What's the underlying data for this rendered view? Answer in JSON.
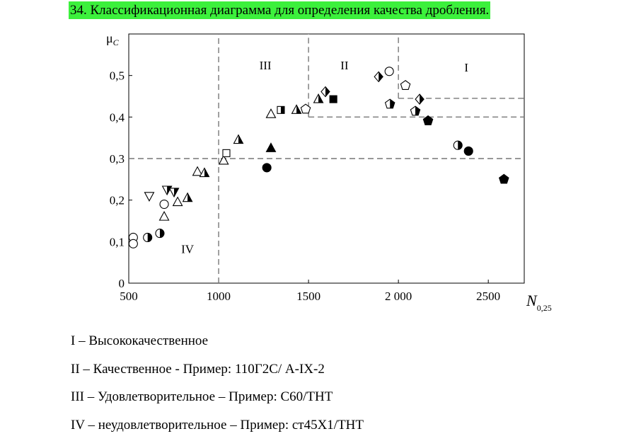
{
  "title": "34. Классификационная диаграмма для определения качества дробления.",
  "chart_data": {
    "type": "scatter",
    "xlabel": {
      "text": "N",
      "sub": "0,25"
    },
    "ylabel": {
      "text": "μ",
      "sub": "C"
    },
    "xlim": [
      500,
      2700
    ],
    "ylim": [
      0,
      0.6
    ],
    "xticks": [
      500,
      1000,
      1500,
      {
        "value": 2000,
        "label": "2 000"
      },
      2500
    ],
    "yticks": [
      0,
      {
        "value": 0.1,
        "label": "0,1"
      },
      {
        "value": 0.2,
        "label": "0,2"
      },
      {
        "value": 0.3,
        "label": "0,3"
      },
      {
        "value": 0.4,
        "label": "0,4"
      },
      {
        "value": 0.5,
        "label": "0,5"
      }
    ],
    "color": "#000000",
    "x": [
      525,
      525,
      605,
      673,
      697,
      697,
      614,
      713,
      752,
      772,
      827,
      882,
      921,
      1028,
      1043,
      1110,
      1268,
      1291,
      1291,
      1346,
      1433,
      1484,
      1555,
      1594,
      1638,
      1890,
      1949,
      1953,
      2039,
      2118,
      2094,
      2165,
      2331,
      2390,
      2587
    ],
    "values": [
      0.11,
      0.095,
      0.11,
      0.12,
      0.16,
      0.19,
      0.21,
      0.225,
      0.22,
      0.195,
      0.205,
      0.268,
      0.265,
      0.295,
      0.313,
      0.345,
      0.278,
      0.325,
      0.407,
      0.417,
      0.417,
      0.419,
      0.443,
      0.461,
      0.443,
      0.497,
      0.51,
      0.431,
      0.476,
      0.443,
      0.414,
      0.391,
      0.332,
      0.318,
      0.25
    ],
    "markers": [
      "circle-open",
      "circle-open",
      "circle-half",
      "circle-half",
      "triangle-open",
      "circle-open",
      "triangle-down-open",
      "triangle-down-half",
      "triangle-down-half",
      "triangle-open",
      "triangle-half",
      "triangle-open",
      "triangle-half",
      "triangle-open",
      "square-open",
      "triangle-half",
      "circle-filled",
      "triangle-filled",
      "triangle-open",
      "square-half",
      "triangle-half",
      "pentagon-open",
      "triangle-half",
      "diamond-half",
      "square-filled",
      "diamond-half",
      "circle-open",
      "pentagon-half",
      "pentagon-open",
      "diamond-half",
      "pentagon-half",
      "pentagon-filled",
      "circle-half",
      "circle-filled",
      "pentagon-filled"
    ],
    "dividers": [
      {
        "x": [
          1000,
          1000
        ],
        "y": [
          0,
          0.6
        ]
      },
      {
        "x": [
          500,
          2700
        ],
        "y": [
          0.3,
          0.3
        ]
      },
      {
        "x": [
          1500,
          1500
        ],
        "y": [
          0.4,
          0.6
        ]
      },
      {
        "x": [
          1500,
          2700
        ],
        "y": [
          0.4,
          0.4
        ]
      },
      {
        "x": [
          2000,
          2000
        ],
        "y": [
          0.445,
          0.6
        ]
      },
      {
        "x": [
          2000,
          2700
        ],
        "y": [
          0.445,
          0.445
        ]
      }
    ],
    "annotations": [
      {
        "text": "III",
        "x": 1260,
        "y": 0.525
      },
      {
        "text": "II",
        "x": 1700,
        "y": 0.525
      },
      {
        "text": "I",
        "x": 2378,
        "y": 0.52
      },
      {
        "text": "IV",
        "x": 827,
        "y": 0.083
      }
    ]
  },
  "notes": [
    "I – Высококачественное",
    "II – Качественное - Пример: 110Г2С/ А-IX-2",
    "III – Удовлетворительное – Пример: С60/ТНТ",
    "IV – неудовлетворительное – Пример: ст45Х1/ТНТ"
  ]
}
